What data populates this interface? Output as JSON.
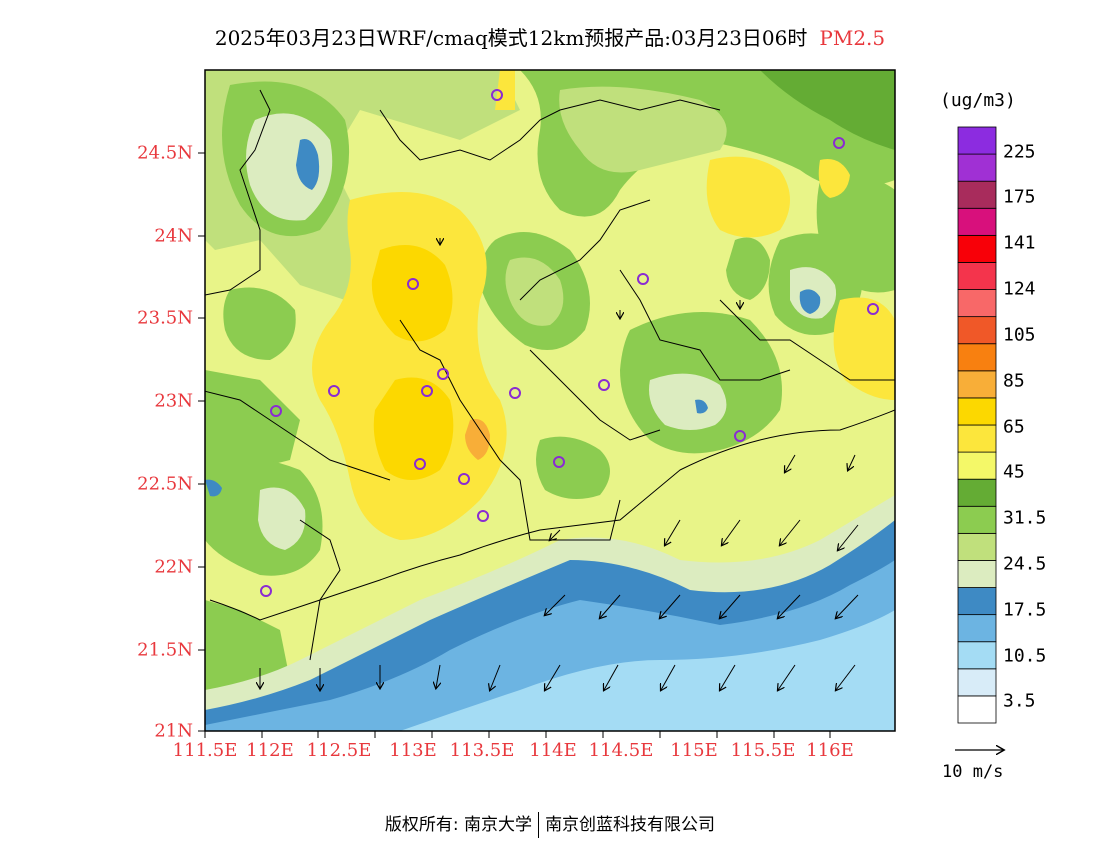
{
  "title": {
    "main": "2025年03月23日WRF/cmaq模式12km预报产品:03月23日06时",
    "pollutant": "PM2.5"
  },
  "axes": {
    "lat_labels": [
      "24.5N",
      "24N",
      "23.5N",
      "23N",
      "22.5N",
      "22N",
      "21.5N",
      "21N"
    ],
    "lon_labels": [
      "111.5E",
      "112E",
      "112.5E",
      "113E",
      "113.5E",
      "114E",
      "114.5E",
      "115E",
      "115.5E",
      "116E"
    ]
  },
  "legend": {
    "unit": "(ug/m3)",
    "labels": [
      "225",
      "175",
      "141",
      "124",
      "105",
      "85",
      "65",
      "45",
      "31.5",
      "24.5",
      "17.5",
      "10.5",
      "3.5"
    ],
    "colors": [
      "#ffffff",
      "#d8ecf8",
      "#a4dcf4",
      "#6cb4e2",
      "#3e8ac4",
      "#dcecc0",
      "#c0e07c",
      "#8ccc50",
      "#64ac34",
      "#f4f868",
      "#fce63c",
      "#fcd800",
      "#f8ae38",
      "#f88010",
      "#f05828",
      "#f86868",
      "#f4344c",
      "#f80008",
      "#d8107c",
      "#a82c5c",
      "#a030d4",
      "#8c2ce0"
    ],
    "base_color": "#e8f488",
    "wind_scale_label": "10 m/s"
  },
  "copyright": {
    "left": "版权所有: 南京大学",
    "right": "南京创蓝科技有限公司"
  }
}
